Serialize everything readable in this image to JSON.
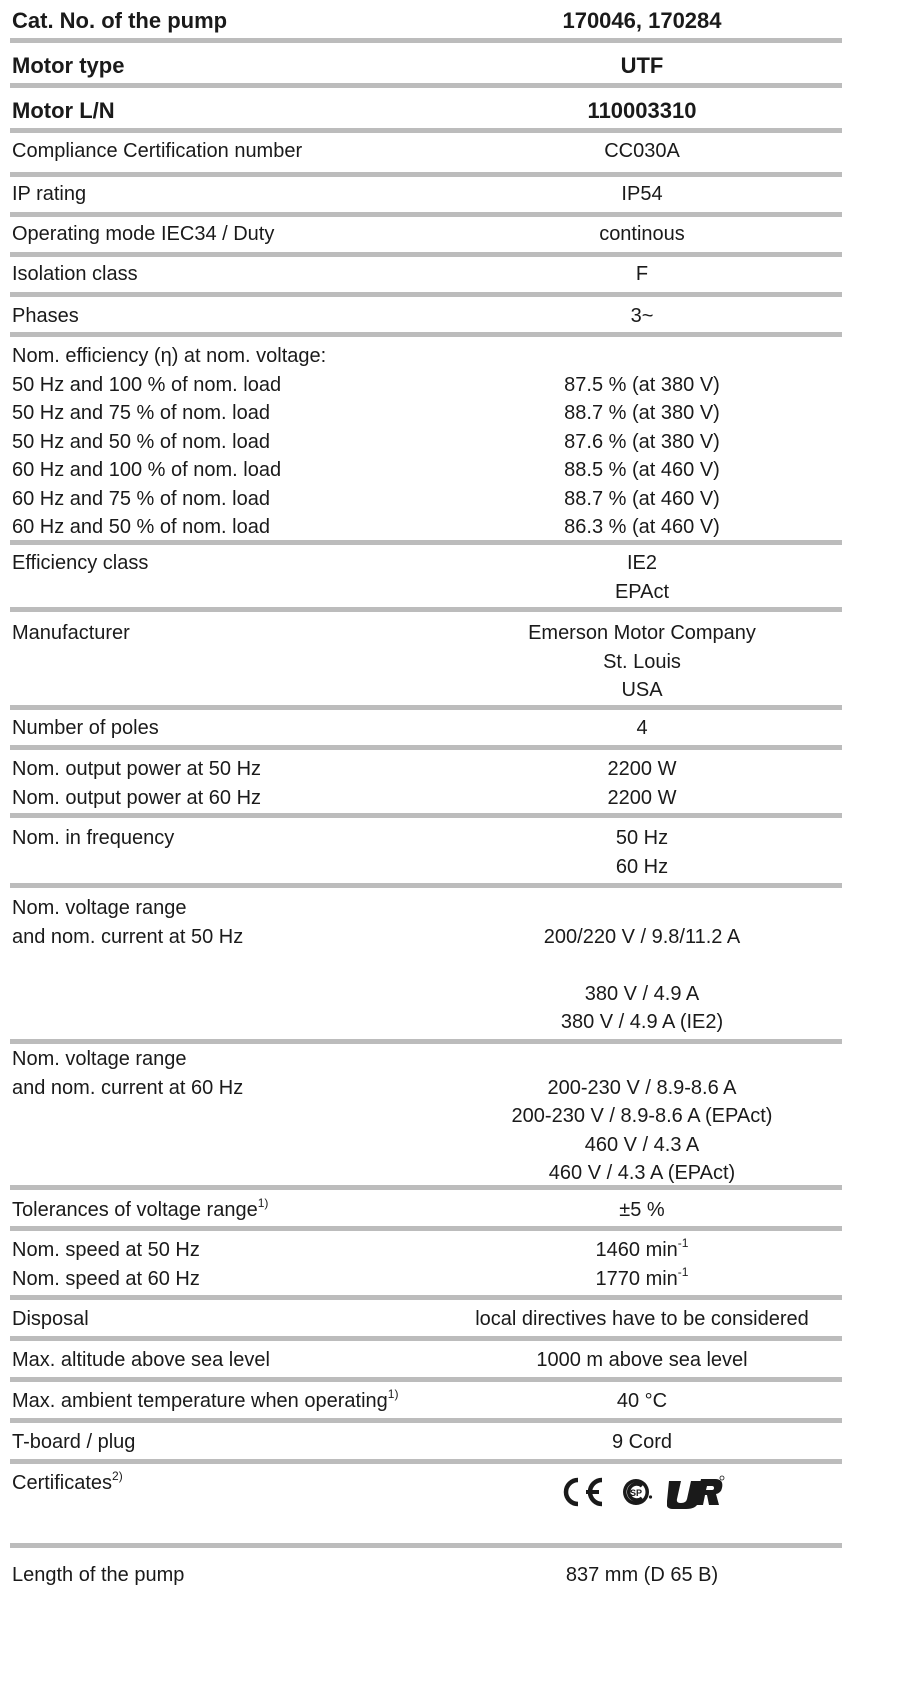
{
  "rows": [
    {
      "left": [
        "Cat. No. of the pump"
      ],
      "right": [
        "170046, 170284"
      ]
    },
    {
      "left": [
        "Motor type"
      ],
      "right": [
        "UTF"
      ]
    },
    {
      "left": [
        "Motor L/N"
      ],
      "right": [
        "110003310"
      ]
    },
    {
      "left": [
        "Compliance Certification number"
      ],
      "right": [
        "CC030A"
      ]
    },
    {
      "left": [
        "IP rating"
      ],
      "right": [
        "IP54"
      ]
    },
    {
      "left": [
        "Operating mode IEC34 / Duty"
      ],
      "right": [
        "continous"
      ]
    },
    {
      "left": [
        "Isolation class"
      ],
      "right": [
        "F"
      ]
    },
    {
      "left": [
        "Phases"
      ],
      "right": [
        "3~"
      ]
    },
    {
      "left": [
        "Nom. efficiency (η) at nom. voltage:",
        "50 Hz and 100 % of nom. load",
        "50 Hz and 75 % of nom. load",
        "50 Hz and 50 % of nom. load",
        "60 Hz and 100 % of nom. load",
        "60 Hz and 75 % of nom. load",
        "60 Hz and 50 % of nom. load"
      ],
      "right": [
        "",
        "87.5 % (at 380 V)",
        "88.7 % (at 380 V)",
        "87.6 % (at 380 V)",
        "88.5 % (at 460 V)",
        "88.7 % (at 460 V)",
        "86.3 % (at 460 V)"
      ]
    },
    {
      "left": [
        "Efficiency class"
      ],
      "right": [
        "IE2",
        "EPAct"
      ]
    },
    {
      "left": [
        "Manufacturer"
      ],
      "right": [
        "Emerson Motor Company",
        "St. Louis",
        "USA"
      ]
    },
    {
      "left": [
        "Number of poles"
      ],
      "right": [
        "4"
      ]
    },
    {
      "left": [
        "Nom. output power at 50 Hz",
        "Nom. output power at 60 Hz"
      ],
      "right": [
        "2200 W",
        "2200 W"
      ]
    },
    {
      "left": [
        "Nom. in frequency"
      ],
      "right": [
        "50 Hz",
        "60 Hz"
      ]
    },
    {
      "left": [
        "Nom. voltage range",
        "and nom. current at 50 Hz"
      ],
      "right": [
        "",
        "200/220 V / 9.8/11.2 A",
        "",
        "380 V / 4.9 A",
        "380 V / 4.9 A (IE2)"
      ]
    },
    {
      "left": [
        "Nom. voltage range",
        "and nom. current at 60 Hz"
      ],
      "right": [
        "",
        "200-230 V / 8.9-8.6 A",
        "200-230 V / 8.9-8.6 A (EPAct)",
        "460 V / 4.3 A",
        "460 V / 4.3 A (EPAct)"
      ]
    },
    {
      "left": [
        "Tolerances of voltage range"
      ],
      "left_sup": "1)",
      "right": [
        "±5 %"
      ]
    },
    {
      "left": [
        "Nom. speed at 50 Hz",
        "Nom. speed at 60 Hz"
      ],
      "right": [
        "1460 min",
        "1770 min"
      ],
      "right_sup": "-1"
    },
    {
      "left": [
        "Disposal"
      ],
      "right": [
        "local directives have to be considered"
      ]
    },
    {
      "left": [
        "Max. altitude above sea level"
      ],
      "right": [
        "1000 m above sea level"
      ]
    },
    {
      "left": [
        "Max. ambient temperature when operating"
      ],
      "left_sup": "1)",
      "right": [
        "40 °C"
      ]
    },
    {
      "left": [
        "T-board / plug"
      ],
      "right": [
        "9 Cord"
      ]
    },
    {
      "left": [
        "Certificates"
      ],
      "left_sup": "2)",
      "certificates": [
        "CE",
        "CSA",
        "UR"
      ]
    },
    {
      "left": [
        "Length of the pump"
      ],
      "right": [
        "837 mm (D 65 B)"
      ]
    }
  ]
}
